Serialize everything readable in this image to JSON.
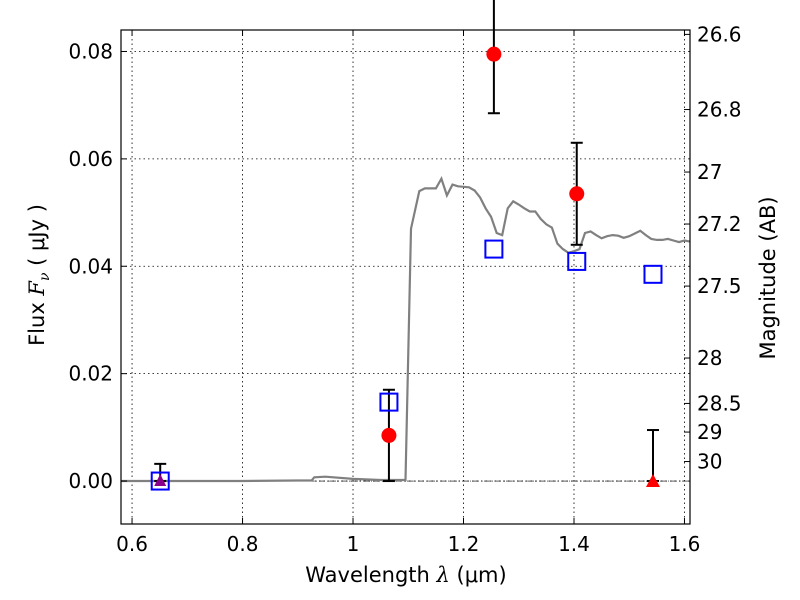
{
  "chart_data": {
    "type": "scatter",
    "xlabel_prefix": "Wavelength  ",
    "xlabel_symbol": "λ",
    "xlabel_suffix": " (μm)",
    "ylabel_prefix": "Flux  ",
    "ylabel_symbol": "F",
    "ylabel_subscript": "ν",
    "ylabel_suffix": "  ( μJy )",
    "y2label": "Magnitude (AB)",
    "xlim": [
      0.58,
      1.61
    ],
    "ylim": [
      -0.008,
      0.084
    ],
    "xticks": [
      0.6,
      0.8,
      1.0,
      1.2,
      1.4,
      1.6
    ],
    "xtick_labels": [
      "0.6",
      "0.8",
      "1",
      "1.2",
      "1.4",
      "1.6"
    ],
    "yticks": [
      0.0,
      0.02,
      0.04,
      0.06,
      0.08
    ],
    "ytick_labels": [
      "0.00",
      "0.02",
      "0.04",
      "0.06",
      "0.08"
    ],
    "y2ticks": [
      {
        "label": "26.6",
        "mag": 26.6
      },
      {
        "label": "26.8",
        "mag": 26.8
      },
      {
        "label": "27",
        "mag": 27.0
      },
      {
        "label": "27.2",
        "mag": 27.2
      },
      {
        "label": "27.5",
        "mag": 27.5
      },
      {
        "label": "28",
        "mag": 28.0
      },
      {
        "label": "28.5",
        "mag": 28.5
      },
      {
        "label": "29",
        "mag": 29.0
      },
      {
        "label": "30",
        "mag": 30.0
      }
    ],
    "grid": true,
    "model_sed": {
      "color": "#808080",
      "x": [
        0.58,
        0.7,
        0.8,
        0.9,
        0.925,
        0.93,
        0.95,
        1.0,
        1.05,
        1.095,
        1.105,
        1.12,
        1.13,
        1.14,
        1.15,
        1.16,
        1.17,
        1.18,
        1.19,
        1.2,
        1.21,
        1.22,
        1.23,
        1.24,
        1.25,
        1.26,
        1.27,
        1.28,
        1.29,
        1.3,
        1.31,
        1.32,
        1.33,
        1.34,
        1.35,
        1.36,
        1.37,
        1.38,
        1.39,
        1.4,
        1.41,
        1.42,
        1.43,
        1.44,
        1.45,
        1.46,
        1.47,
        1.48,
        1.49,
        1.5,
        1.51,
        1.52,
        1.53,
        1.54,
        1.55,
        1.56,
        1.57,
        1.58,
        1.59,
        1.6,
        1.61
      ],
      "y": [
        0.0,
        0.0,
        0.0,
        0.0001,
        0.0001,
        0.0007,
        0.0008,
        0.0004,
        0.0002,
        0.0002,
        0.047,
        0.054,
        0.0545,
        0.0545,
        0.0545,
        0.0563,
        0.0532,
        0.0552,
        0.0549,
        0.0548,
        0.0547,
        0.0541,
        0.0528,
        0.0508,
        0.0492,
        0.0462,
        0.0458,
        0.0508,
        0.0521,
        0.0515,
        0.0508,
        0.0502,
        0.0502,
        0.0488,
        0.0478,
        0.0472,
        0.0442,
        0.0432,
        0.0425,
        0.0428,
        0.0432,
        0.0462,
        0.0465,
        0.0458,
        0.0452,
        0.0456,
        0.0458,
        0.0457,
        0.0453,
        0.0456,
        0.0461,
        0.0466,
        0.0458,
        0.0451,
        0.0449,
        0.0449,
        0.0451,
        0.0448,
        0.0445,
        0.0448,
        0.0446
      ]
    },
    "observed": {
      "color": "#ff0000",
      "points": [
        {
          "x": 1.065,
          "y": 0.0085,
          "yerr": 0.0085
        },
        {
          "x": 1.255,
          "y": 0.0795,
          "yerr": 0.011
        },
        {
          "x": 1.405,
          "y": 0.0535,
          "yerr": 0.0095
        }
      ]
    },
    "upper_limits": {
      "color": "#ff0000",
      "points": [
        {
          "x": 1.543,
          "y": 0.0,
          "yerr_upper": 0.0095
        }
      ]
    },
    "model_photometry": {
      "color": "#0000ff",
      "points": [
        {
          "x": 0.651,
          "y": 0.0
        },
        {
          "x": 1.065,
          "y": 0.0147
        },
        {
          "x": 1.255,
          "y": 0.0432
        },
        {
          "x": 1.405,
          "y": 0.0409
        },
        {
          "x": 1.543,
          "y": 0.0385
        }
      ]
    },
    "low_point": {
      "color": "#8b008b",
      "x": 0.651,
      "y": 0.0,
      "yerr_upper": 0.0032
    }
  }
}
